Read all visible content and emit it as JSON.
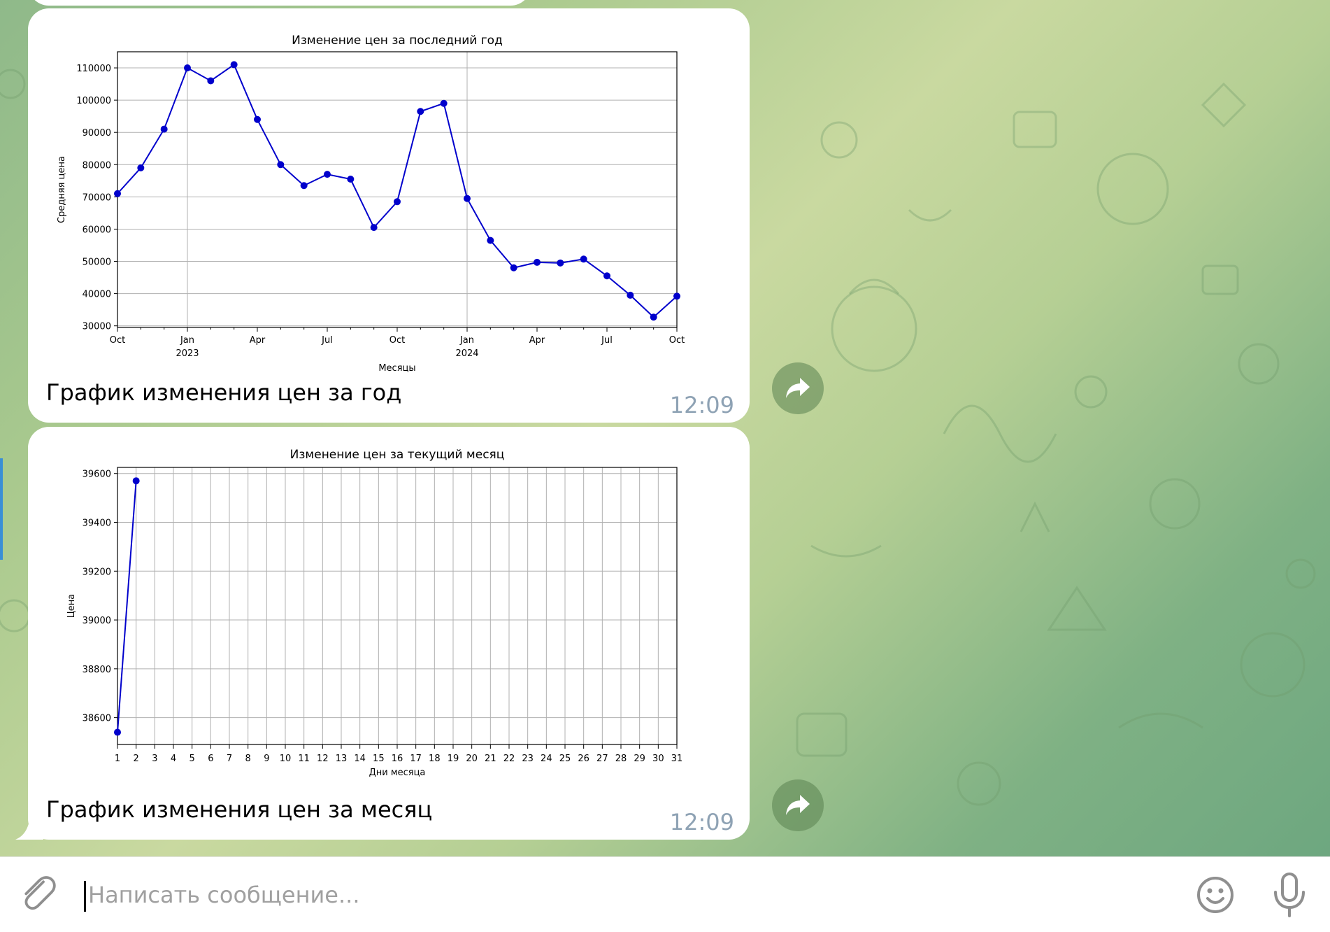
{
  "colors": {
    "line": "#0000cc",
    "grid": "#b0b0b0",
    "time_text": "#8ea2b4",
    "bubble": "#ffffff"
  },
  "messages": [
    {
      "caption": "График изменения цен за год",
      "time": "12:09",
      "forward_icon": "share-arrow-icon"
    },
    {
      "caption": "График изменения цен за месяц",
      "time": "12:09",
      "forward_icon": "share-arrow-icon"
    }
  ],
  "composer": {
    "placeholder": "Написать сообщение...",
    "attach_icon": "paperclip-icon",
    "emoji_icon": "smiley-icon",
    "mic_icon": "microphone-icon"
  },
  "chart_data": [
    {
      "type": "line",
      "title": "Изменение цен за последний год",
      "xlabel": "Месяцы",
      "ylabel": "Средняя цена",
      "x_ticks": [
        {
          "month": 0,
          "label": "Oct",
          "sub": ""
        },
        {
          "month": 3,
          "label": "Jan",
          "sub": "2023"
        },
        {
          "month": 6,
          "label": "Apr",
          "sub": ""
        },
        {
          "month": 9,
          "label": "Jul",
          "sub": ""
        },
        {
          "month": 12,
          "label": "Oct",
          "sub": ""
        },
        {
          "month": 15,
          "label": "Jan",
          "sub": "2024"
        },
        {
          "month": 18,
          "label": "Apr",
          "sub": ""
        },
        {
          "month": 21,
          "label": "Jul",
          "sub": ""
        },
        {
          "month": 24,
          "label": "Oct",
          "sub": ""
        }
      ],
      "y_ticks": [
        "30000",
        "40000",
        "50000",
        "60000",
        "70000",
        "80000",
        "90000",
        "100000",
        "110000"
      ],
      "xlim": [
        "2022-10",
        "2024-10"
      ],
      "ylim": [
        29500,
        115000
      ],
      "grid": "major",
      "x": [
        "2022-10",
        "2022-11",
        "2022-12",
        "2023-01",
        "2023-02",
        "2023-03",
        "2023-04",
        "2023-05",
        "2023-06",
        "2023-07",
        "2023-08",
        "2023-09",
        "2023-10",
        "2023-11",
        "2023-12",
        "2024-01",
        "2024-02",
        "2024-03",
        "2024-04",
        "2024-05",
        "2024-06",
        "2024-07",
        "2024-08",
        "2024-09",
        "2024-10"
      ],
      "values": [
        71000,
        79000,
        91000,
        110000,
        106000,
        111000,
        94000,
        80000,
        73500,
        77000,
        75500,
        60500,
        68500,
        96500,
        99000,
        69500,
        56500,
        48000,
        49700,
        49500,
        50700,
        45500,
        39500,
        32700,
        39200
      ]
    },
    {
      "type": "line",
      "title": "Изменение цен за текущий месяц",
      "xlabel": "Дни месяца",
      "ylabel": "Цена",
      "x_ticks": [
        "1",
        "2",
        "3",
        "4",
        "5",
        "6",
        "7",
        "8",
        "9",
        "10",
        "11",
        "12",
        "13",
        "14",
        "15",
        "16",
        "17",
        "18",
        "19",
        "20",
        "21",
        "22",
        "23",
        "24",
        "25",
        "26",
        "27",
        "28",
        "29",
        "30",
        "31"
      ],
      "y_ticks": [
        "38600",
        "38800",
        "39000",
        "39200",
        "39400",
        "39600"
      ],
      "xlim": [
        1,
        31
      ],
      "ylim": [
        38490,
        39625
      ],
      "grid": "major",
      "x": [
        1,
        2
      ],
      "values": [
        38540,
        39570
      ]
    }
  ]
}
